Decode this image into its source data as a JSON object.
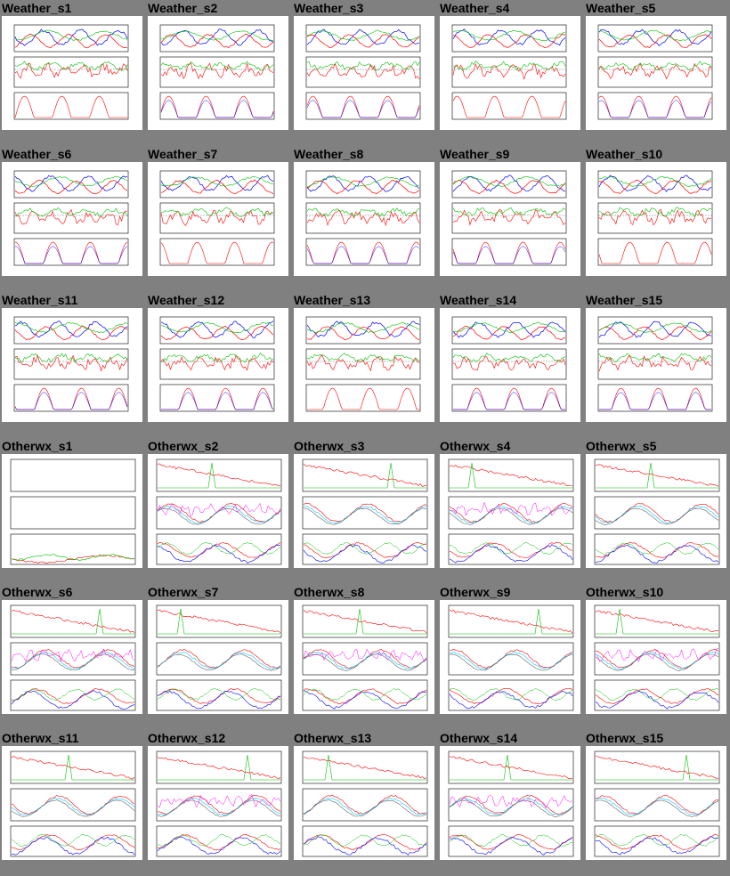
{
  "thumbnails": [
    {
      "label": "Weather_s1",
      "kind": "weather"
    },
    {
      "label": "Weather_s2",
      "kind": "weather"
    },
    {
      "label": "Weather_s3",
      "kind": "weather"
    },
    {
      "label": "Weather_s4",
      "kind": "weather"
    },
    {
      "label": "Weather_s5",
      "kind": "weather"
    },
    {
      "label": "Weather_s6",
      "kind": "weather"
    },
    {
      "label": "Weather_s7",
      "kind": "weather"
    },
    {
      "label": "Weather_s8",
      "kind": "weather"
    },
    {
      "label": "Weather_s9",
      "kind": "weather"
    },
    {
      "label": "Weather_s10",
      "kind": "weather"
    },
    {
      "label": "Weather_s11",
      "kind": "weather"
    },
    {
      "label": "Weather_s12",
      "kind": "weather"
    },
    {
      "label": "Weather_s13",
      "kind": "weather"
    },
    {
      "label": "Weather_s14",
      "kind": "weather"
    },
    {
      "label": "Weather_s15",
      "kind": "weather"
    },
    {
      "label": "Otherwx_s1",
      "kind": "otherwx-sparse"
    },
    {
      "label": "Otherwx_s2",
      "kind": "otherwx"
    },
    {
      "label": "Otherwx_s3",
      "kind": "otherwx"
    },
    {
      "label": "Otherwx_s4",
      "kind": "otherwx"
    },
    {
      "label": "Otherwx_s5",
      "kind": "otherwx"
    },
    {
      "label": "Otherwx_s6",
      "kind": "otherwx"
    },
    {
      "label": "Otherwx_s7",
      "kind": "otherwx"
    },
    {
      "label": "Otherwx_s8",
      "kind": "otherwx"
    },
    {
      "label": "Otherwx_s9",
      "kind": "otherwx"
    },
    {
      "label": "Otherwx_s10",
      "kind": "otherwx"
    },
    {
      "label": "Otherwx_s11",
      "kind": "otherwx"
    },
    {
      "label": "Otherwx_s12",
      "kind": "otherwx"
    },
    {
      "label": "Otherwx_s13",
      "kind": "otherwx"
    },
    {
      "label": "Otherwx_s14",
      "kind": "otherwx"
    },
    {
      "label": "Otherwx_s15",
      "kind": "otherwx"
    }
  ],
  "colors": {
    "page_background": "#808080",
    "thumbnail_background": "#ffffff",
    "series_red": "#ff0000",
    "series_green": "#00c000",
    "series_blue": "#0000ff",
    "series_cyan": "#00c8ff",
    "series_magenta": "#ff00ff",
    "series_gray": "#666666"
  }
}
